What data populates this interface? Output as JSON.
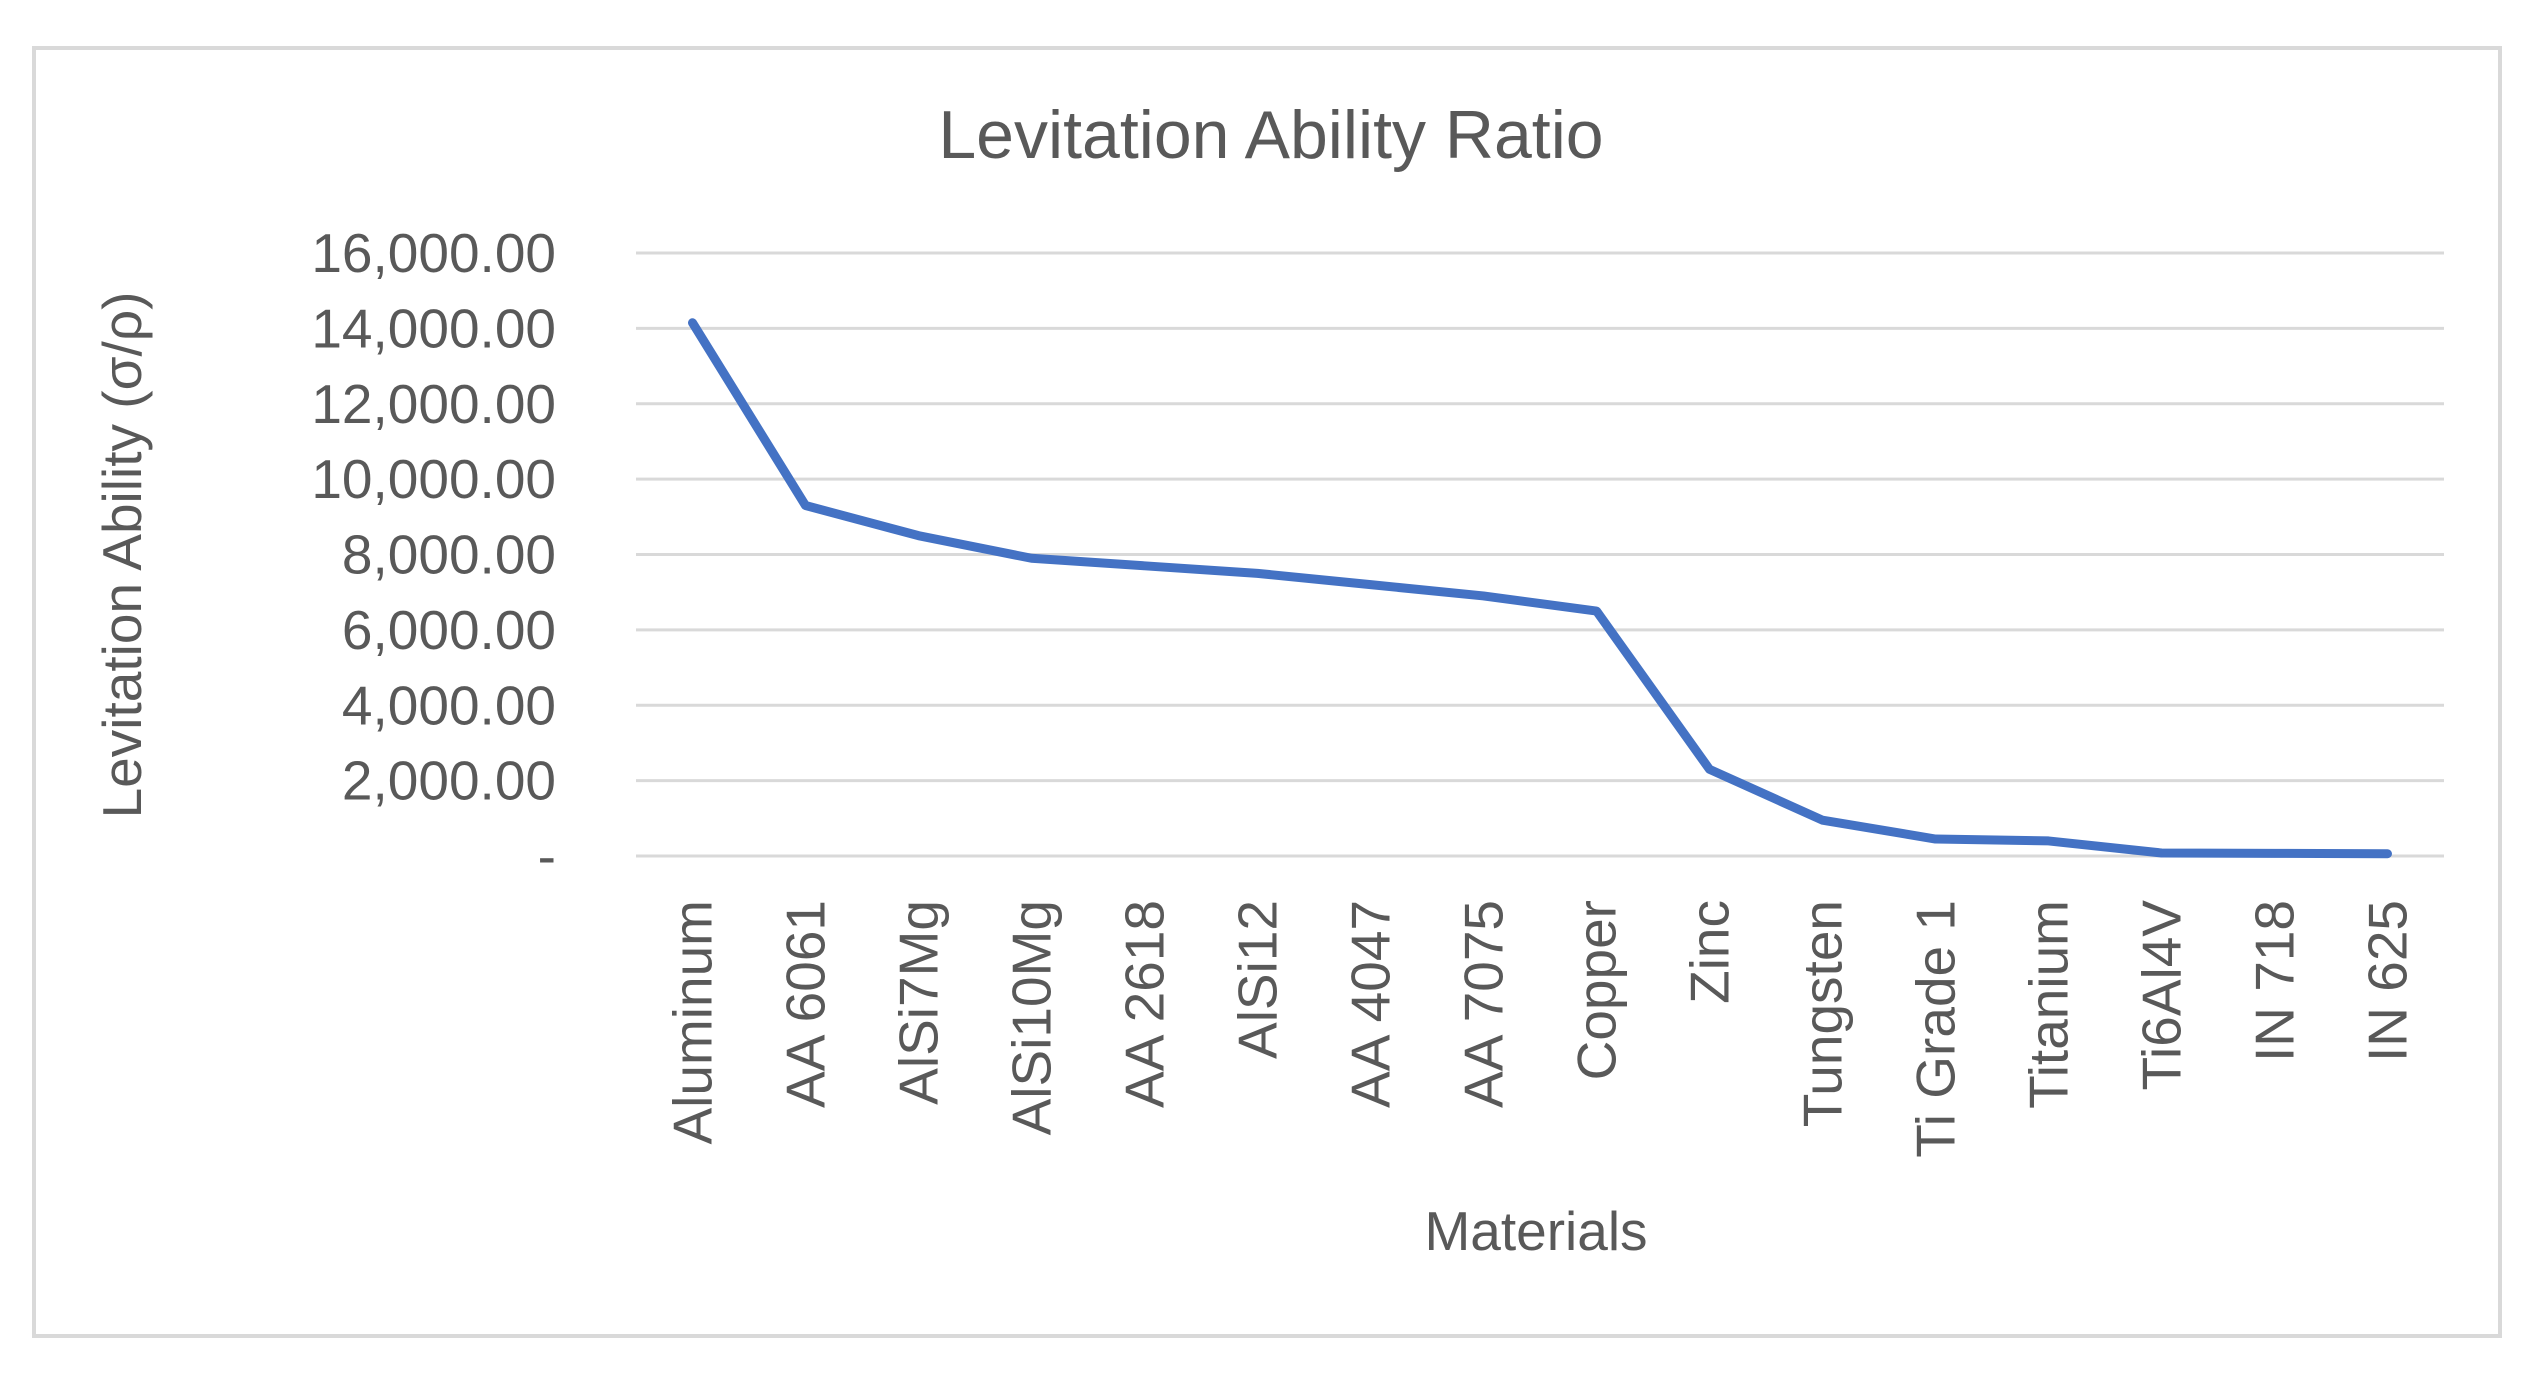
{
  "chart_data": {
    "type": "line",
    "title": "Levitation Ability Ratio",
    "xlabel": "Materials",
    "ylabel": "Levitation Ability (σ/ρ)",
    "categories": [
      "Aluminum",
      "AA 6061",
      "AlSi7Mg",
      "AlSi10Mg",
      "AA 2618",
      "AlSi12",
      "AA 4047",
      "AA 7075",
      "Copper",
      "Zinc",
      "Tungsten",
      "Ti Grade 1",
      "Titanium",
      "Ti6Al4V",
      "IN 718",
      "IN 625"
    ],
    "series": [
      {
        "values": [
          14150,
          9300,
          8500,
          7900,
          7700,
          7500,
          7200,
          6900,
          6500,
          2300,
          950,
          450,
          400,
          80,
          70,
          60
        ],
        "color": "#4472c4"
      }
    ],
    "ylim": [
      0,
      16000
    ],
    "yticks": [
      0,
      2000,
      4000,
      6000,
      8000,
      10000,
      12000,
      14000,
      16000
    ],
    "ytick_labels": [
      "-",
      "2,000.00",
      "4,000.00",
      "6,000.00",
      "8,000.00",
      "10,000.00",
      "12,000.00",
      "14,000.00",
      "16,000.00"
    ],
    "grid": true,
    "legend": "none"
  }
}
